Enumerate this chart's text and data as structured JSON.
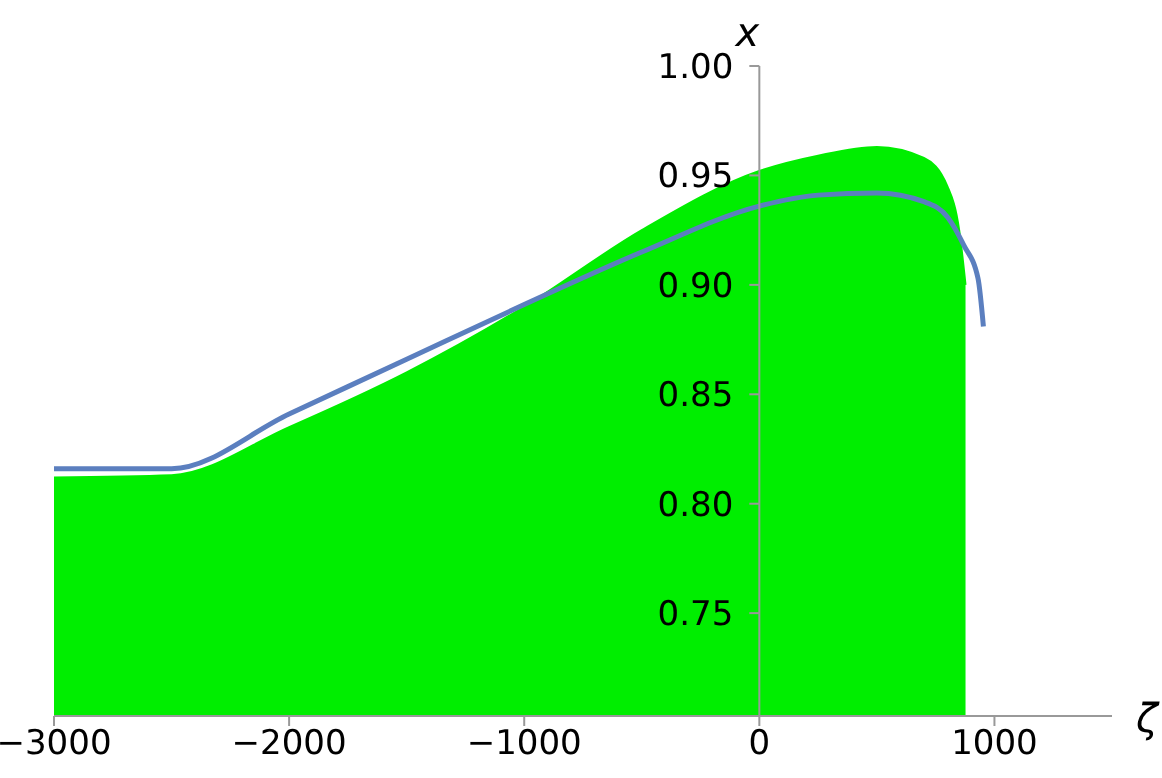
{
  "chart_data": {
    "type": "line",
    "xlabel": "ζ",
    "ylabel": "x",
    "xlim": [
      -3000,
      1500
    ],
    "ylim": [
      0.703,
      1.0
    ],
    "xticks": [
      -3000,
      -2000,
      -1000,
      0,
      1000
    ],
    "yticks": [
      0.75,
      {
        "value": 0.8,
        "label": "0.80"
      },
      0.85,
      {
        "value": 0.9,
        "label": "0.90"
      },
      0.95,
      {
        "value": 1.0,
        "label": "1.00"
      }
    ],
    "legend": false,
    "marker": "none",
    "series": [
      {
        "type": "area",
        "color": "#00ee00",
        "x": [
          -3000,
          -2500,
          -2000,
          -1500,
          -1000,
          -500,
          0,
          250,
          500,
          700,
          800,
          850,
          877
        ],
        "values": [
          0.812,
          0.813,
          0.835,
          0.86,
          0.89,
          0.925,
          0.952,
          0.959,
          0.963,
          0.958,
          0.945,
          0.925,
          0.9
        ]
      },
      {
        "color": "#5b7fbf",
        "x": [
          -3000,
          -2500,
          -2000,
          -1500,
          -1000,
          -500,
          0,
          250,
          500,
          700,
          800,
          870,
          930,
          953
        ],
        "values": [
          0.816,
          0.816,
          0.841,
          0.866,
          0.891,
          0.915,
          0.936,
          0.941,
          0.942,
          0.938,
          0.931,
          0.918,
          0.903,
          0.881
        ]
      }
    ]
  }
}
